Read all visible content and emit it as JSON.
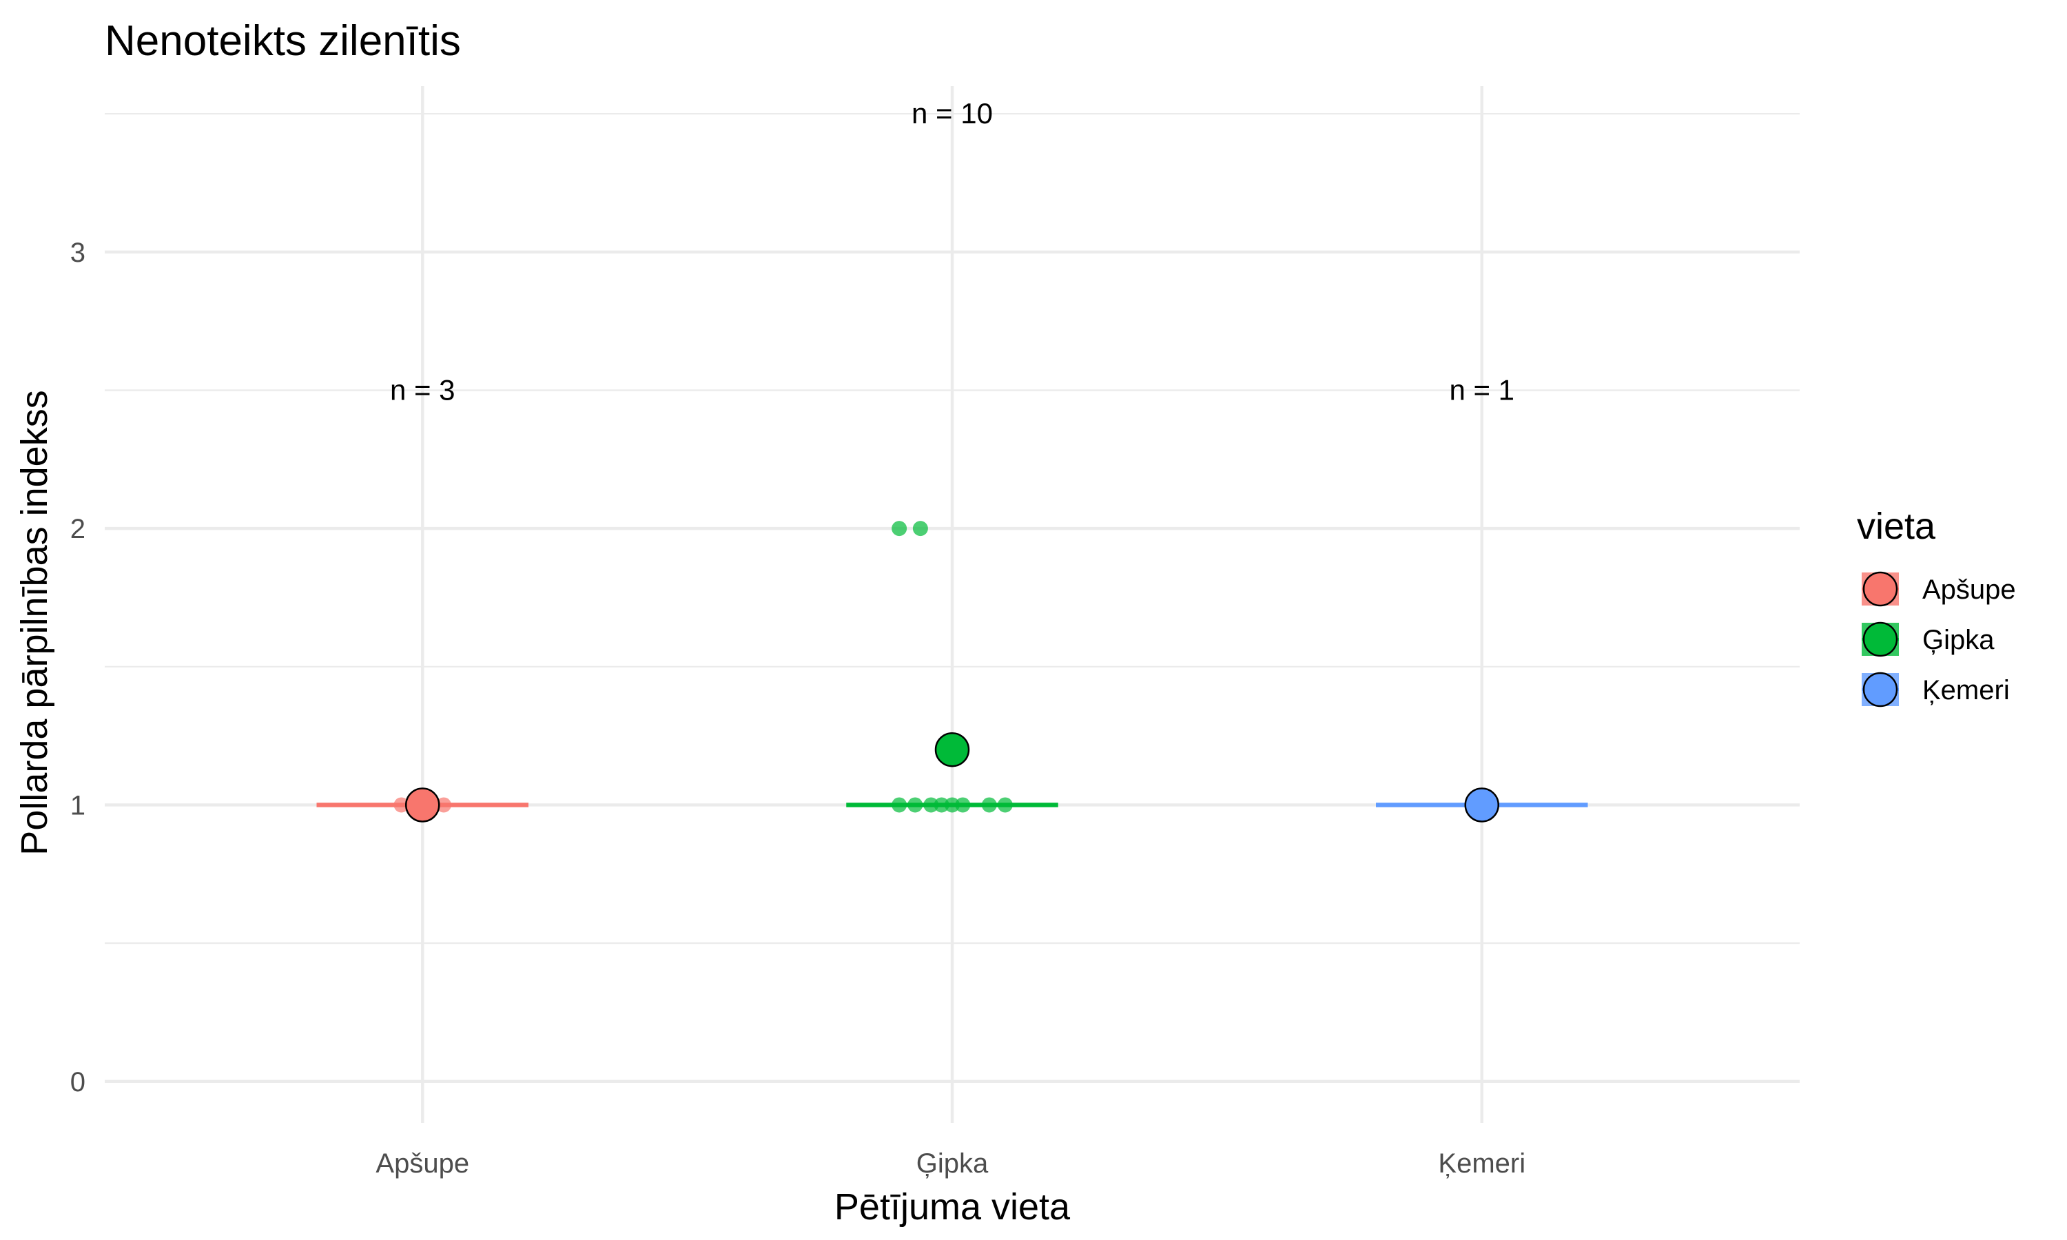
{
  "chart_data": {
    "type": "scatter",
    "title": "Nenoteikts zilenītis",
    "xlabel": "Pētījuma vieta",
    "ylabel": "Pollarda pārpilnības indekss",
    "categories": [
      "Apšupe",
      "Ģipka",
      "Ķemeri"
    ],
    "ylim": [
      -0.15,
      3.6
    ],
    "yticks": [
      0,
      1,
      2,
      3
    ],
    "grid": true,
    "legend": {
      "title": "vieta",
      "position": "right"
    },
    "colors": {
      "Apšupe": "#F8766D",
      "Ģipka": "#00BA38",
      "Ķemeri": "#619CFF"
    },
    "series": [
      {
        "name": "Apšupe",
        "points": [
          {
            "x": -0.04,
            "y": 1
          },
          {
            "x": 0.0,
            "y": 1
          },
          {
            "x": 0.04,
            "y": 1
          }
        ],
        "mean": 1.0,
        "median": 1,
        "n_label": "n = 3",
        "n_label_y": 2.5
      },
      {
        "name": "Ģipka",
        "points": [
          {
            "x": -0.1,
            "y": 1
          },
          {
            "x": -0.07,
            "y": 1
          },
          {
            "x": -0.04,
            "y": 1
          },
          {
            "x": -0.02,
            "y": 1
          },
          {
            "x": 0.0,
            "y": 1
          },
          {
            "x": 0.02,
            "y": 1
          },
          {
            "x": 0.07,
            "y": 1
          },
          {
            "x": 0.1,
            "y": 1
          },
          {
            "x": -0.1,
            "y": 2
          },
          {
            "x": -0.06,
            "y": 2
          }
        ],
        "mean": 1.2,
        "median": 1,
        "n_label": "n = 10",
        "n_label_y": 3.5
      },
      {
        "name": "Ķemeri",
        "points": [
          {
            "x": 0.0,
            "y": 1
          }
        ],
        "mean": 1.0,
        "median": 1,
        "n_label": "n = 1",
        "n_label_y": 2.5
      }
    ]
  }
}
